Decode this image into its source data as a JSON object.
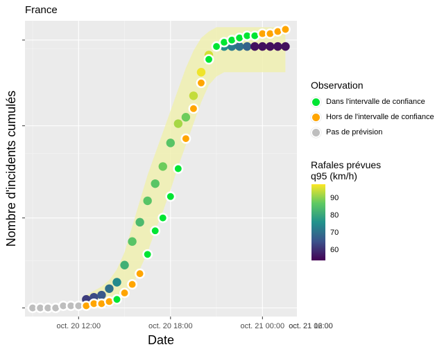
{
  "title": "France",
  "chart_data": {
    "type": "scatter",
    "title": "France",
    "xlabel": "Date",
    "ylabel": "Nombre d'incidents cumulés",
    "x_tick_labels": [
      "oct. 20 12:00",
      "oct. 20 18:00",
      "oct. 21 00:00",
      "oct. 21 06:00",
      "oct. 21 12:00"
    ],
    "legend_observation": {
      "title": "Observation",
      "entries": [
        {
          "label": "Dans l'intervalle de confiance",
          "color": "#00e533"
        },
        {
          "label": "Hors de l'intervalle de confiance",
          "color": "#ffa500"
        },
        {
          "label": "Pas de prévision",
          "color": "#bebebe"
        }
      ]
    },
    "legend_gusts": {
      "title_line1": "Rafales prévues",
      "title_line2": "q95 (km/h)",
      "ticks": [
        "90",
        "80",
        "70",
        "60"
      ],
      "range": [
        54,
        98
      ]
    },
    "observed": [
      {
        "x": "oct. 20 09:00",
        "y": 0,
        "status": "Pas de prévision"
      },
      {
        "x": "oct. 20 09:30",
        "y": 0,
        "status": "Pas de prévision"
      },
      {
        "x": "oct. 20 10:00",
        "y": 0,
        "status": "Pas de prévision"
      },
      {
        "x": "oct. 20 10:30",
        "y": 0,
        "status": "Pas de prévision"
      },
      {
        "x": "oct. 20 11:00",
        "y": 1,
        "status": "Pas de prévision"
      },
      {
        "x": "oct. 20 11:30",
        "y": 1,
        "status": "Pas de prévision"
      },
      {
        "x": "oct. 20 12:00",
        "y": 1,
        "status": "Pas de prévision"
      },
      {
        "x": "oct. 20 12:30",
        "y": 1,
        "status": "Hors de l'intervalle de confiance"
      },
      {
        "x": "oct. 20 13:00",
        "y": 2,
        "status": "Hors de l'intervalle de confiance"
      },
      {
        "x": "oct. 20 13:30",
        "y": 2,
        "status": "Hors de l'intervalle de confiance"
      },
      {
        "x": "oct. 20 14:00",
        "y": 3,
        "status": "Hors de l'intervalle de confiance"
      },
      {
        "x": "oct. 20 14:30",
        "y": 4,
        "status": "Dans l'intervalle de confiance"
      },
      {
        "x": "oct. 20 15:00",
        "y": 7,
        "status": "Hors de l'intervalle de confiance"
      },
      {
        "x": "oct. 20 15:30",
        "y": 11,
        "status": "Hors de l'intervalle de confiance"
      },
      {
        "x": "oct. 20 16:00",
        "y": 16,
        "status": "Hors de l'intervalle de confiance"
      },
      {
        "x": "oct. 20 16:30",
        "y": 25,
        "status": "Dans l'intervalle de confiance"
      },
      {
        "x": "oct. 20 17:00",
        "y": 36,
        "status": "Dans l'intervalle de confiance"
      },
      {
        "x": "oct. 20 17:30",
        "y": 42,
        "status": "Dans l'intervalle de confiance"
      },
      {
        "x": "oct. 20 18:00",
        "y": 52,
        "status": "Dans l'intervalle de confiance"
      },
      {
        "x": "oct. 20 18:30",
        "y": 65,
        "status": "Dans l'intervalle de confiance"
      },
      {
        "x": "oct. 20 19:00",
        "y": 79,
        "status": "Hors de l'intervalle de confiance"
      },
      {
        "x": "oct. 20 19:30",
        "y": 93,
        "status": "Hors de l'intervalle de confiance"
      },
      {
        "x": "oct. 20 20:00",
        "y": 105,
        "status": "Hors de l'intervalle de confiance"
      },
      {
        "x": "oct. 20 20:30",
        "y": 116,
        "status": "Dans l'intervalle de confiance"
      },
      {
        "x": "oct. 20 21:00",
        "y": 122,
        "status": "Dans l'intervalle de confiance"
      },
      {
        "x": "oct. 20 21:30",
        "y": 124,
        "status": "Dans l'intervalle de confiance"
      },
      {
        "x": "oct. 20 22:00",
        "y": 125,
        "status": "Dans l'intervalle de confiance"
      },
      {
        "x": "oct. 20 22:30",
        "y": 126,
        "status": "Dans l'intervalle de confiance"
      },
      {
        "x": "oct. 20 23:00",
        "y": 127,
        "status": "Dans l'intervalle de confiance"
      },
      {
        "x": "oct. 20 23:30",
        "y": 127,
        "status": "Dans l'intervalle de confiance"
      },
      {
        "x": "oct. 21 00:00",
        "y": 128,
        "status": "Hors de l'intervalle de confiance"
      },
      {
        "x": "oct. 21 00:30",
        "y": 128,
        "status": "Hors de l'intervalle de confiance"
      },
      {
        "x": "oct. 21 01:00",
        "y": 129,
        "status": "Hors de l'intervalle de confiance"
      },
      {
        "x": "oct. 21 01:30",
        "y": 130,
        "status": "Hors de l'intervalle de confiance"
      }
    ],
    "forecast": [
      {
        "x": "oct. 20 12:30",
        "y": 4,
        "gust": 62
      },
      {
        "x": "oct. 20 13:00",
        "y": 5,
        "gust": 64
      },
      {
        "x": "oct. 20 13:30",
        "y": 6,
        "gust": 66
      },
      {
        "x": "oct. 20 14:00",
        "y": 9,
        "gust": 70
      },
      {
        "x": "oct. 20 14:30",
        "y": 12,
        "gust": 75
      },
      {
        "x": "oct. 20 15:00",
        "y": 20,
        "gust": 82
      },
      {
        "x": "oct. 20 15:30",
        "y": 31,
        "gust": 86
      },
      {
        "x": "oct. 20 16:00",
        "y": 40,
        "gust": 84
      },
      {
        "x": "oct. 20 16:30",
        "y": 50,
        "gust": 86
      },
      {
        "x": "oct. 20 17:00",
        "y": 58,
        "gust": 86
      },
      {
        "x": "oct. 20 17:30",
        "y": 66,
        "gust": 88
      },
      {
        "x": "oct. 20 18:00",
        "y": 77,
        "gust": 86
      },
      {
        "x": "oct. 20 18:30",
        "y": 86,
        "gust": 92
      },
      {
        "x": "oct. 20 19:00",
        "y": 89,
        "gust": 88
      },
      {
        "x": "oct. 20 19:30",
        "y": 99,
        "gust": 94
      },
      {
        "x": "oct. 20 20:00",
        "y": 110,
        "gust": 97
      },
      {
        "x": "oct. 20 20:30",
        "y": 118,
        "gust": 95
      },
      {
        "x": "oct. 20 21:00",
        "y": 122,
        "gust": 84
      },
      {
        "x": "oct. 20 21:30",
        "y": 122,
        "gust": 75
      },
      {
        "x": "oct. 20 22:00",
        "y": 122,
        "gust": 72
      },
      {
        "x": "oct. 20 22:30",
        "y": 122,
        "gust": 70
      },
      {
        "x": "oct. 20 23:00",
        "y": 122,
        "gust": 68
      },
      {
        "x": "oct. 20 23:30",
        "y": 122,
        "gust": 56
      },
      {
        "x": "oct. 21 00:00",
        "y": 122,
        "gust": 56
      },
      {
        "x": "oct. 21 00:30",
        "y": 122,
        "gust": 56
      },
      {
        "x": "oct. 21 01:00",
        "y": 122,
        "gust": 56
      },
      {
        "x": "oct. 21 01:30",
        "y": 122,
        "gust": 56
      }
    ],
    "confidence_band": {
      "lower": [
        0,
        0,
        0,
        1,
        2,
        5,
        10,
        18,
        26,
        36,
        45,
        55,
        66,
        76,
        86,
        96,
        104,
        108,
        110,
        110,
        110,
        110,
        110,
        110,
        110,
        110,
        110
      ],
      "upper": [
        6,
        8,
        10,
        13,
        18,
        26,
        38,
        50,
        62,
        72,
        82,
        92,
        102,
        112,
        120,
        126,
        129,
        131,
        131,
        131,
        131,
        131,
        131,
        131,
        131,
        131,
        131
      ]
    },
    "grid": true
  }
}
